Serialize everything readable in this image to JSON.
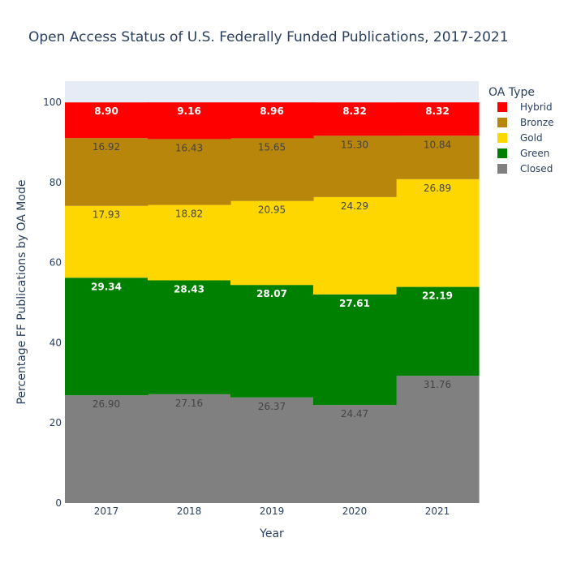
{
  "chart_data": {
    "type": "bar",
    "stacked": true,
    "title": "Open Access Status of U.S. Federally Funded Publications, 2017-2021",
    "xlabel": "Year",
    "ylabel": "Percentage FF Publications by OA Mode",
    "categories": [
      "2017",
      "2018",
      "2019",
      "2020",
      "2021"
    ],
    "ylim": [
      0,
      105.3
    ],
    "yticks": [
      0,
      20,
      40,
      60,
      80,
      100
    ],
    "legend_title": "OA Type",
    "legend_position": "right",
    "series": [
      {
        "name": "Closed",
        "color": "#808080",
        "label_color": "#444444",
        "values": [
          26.9,
          27.16,
          26.37,
          24.47,
          31.76
        ],
        "labels": [
          "26.90",
          "27.16",
          "26.37",
          "24.47",
          "31.76"
        ]
      },
      {
        "name": "Green",
        "color": "#008000",
        "label_color": "#ffffff",
        "values": [
          29.34,
          28.43,
          28.07,
          27.61,
          22.19
        ],
        "labels": [
          "29.34",
          "28.43",
          "28.07",
          "27.61",
          "22.19"
        ]
      },
      {
        "name": "Gold",
        "color": "#ffd700",
        "label_color": "#444444",
        "values": [
          17.93,
          18.82,
          20.95,
          24.29,
          26.89
        ],
        "labels": [
          "17.93",
          "18.82",
          "20.95",
          "24.29",
          "26.89"
        ]
      },
      {
        "name": "Bronze",
        "color": "#b8860b",
        "label_color": "#444444",
        "values": [
          16.92,
          16.43,
          15.65,
          15.3,
          10.84
        ],
        "labels": [
          "16.92",
          "16.43",
          "15.65",
          "15.30",
          "10.84"
        ]
      },
      {
        "name": "Hybrid",
        "color": "#ff0000",
        "label_color": "#ffffff",
        "values": [
          8.9,
          9.16,
          8.96,
          8.32,
          8.32
        ],
        "labels": [
          "8.90",
          "9.16",
          "8.96",
          "8.32",
          "8.32"
        ]
      }
    ],
    "plot_bg": "#e5ecf6",
    "text_color": "#2a3f5f"
  }
}
